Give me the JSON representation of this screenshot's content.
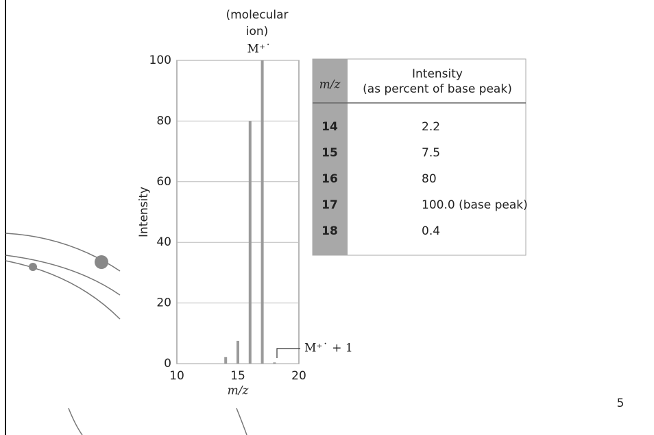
{
  "chart_data": {
    "type": "bar",
    "x": [
      14,
      15,
      16,
      17,
      18
    ],
    "values": [
      2.2,
      7.5,
      80,
      100,
      0.4
    ],
    "color": "#9a9a9a",
    "xlim": [
      10,
      20
    ],
    "xticks": [
      10,
      15,
      20
    ],
    "ylim": [
      0,
      100
    ],
    "yticks": [
      0,
      20,
      40,
      60,
      80,
      100
    ],
    "grid": true,
    "xlabel": "m/z",
    "ylabel": "Intensity",
    "annotations": {
      "molecular_ion": [
        "(molecular",
        "ion)"
      ],
      "m": "M⁺˙",
      "m_plus_1": "M⁺˙ + 1"
    }
  },
  "table": {
    "header": {
      "mz": "m/z",
      "intensity": [
        "Intensity",
        "(as percent of base peak)"
      ]
    },
    "rows": [
      [
        "14",
        "2.2"
      ],
      [
        "15",
        "7.5"
      ],
      [
        "16",
        "80"
      ],
      [
        "17",
        "100.0 (base peak)"
      ],
      [
        "18",
        "0.4"
      ]
    ]
  },
  "slide_number": "5"
}
